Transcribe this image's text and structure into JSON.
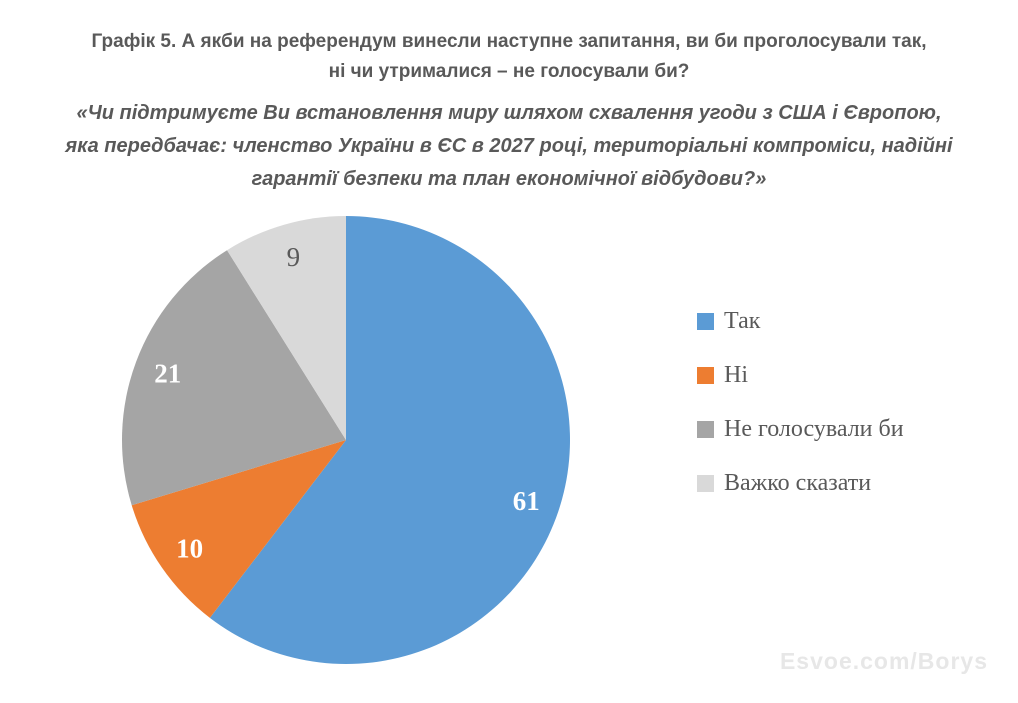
{
  "header": {
    "title_lines": [
      "Графік 5. А якби на референдум винесли наступне запитання, ви би проголосували так,",
      "ні чи утрималися – не голосували би?"
    ],
    "subtitle_lines": [
      "«Чи підтримуєте Ви встановлення миру шляхом схвалення угоди з США і Європою,",
      "яка передбачає: членство України в ЄС в 2027 році, територіальні компроміси, надійні",
      "гарантії безпеки та план економічної відбудови?»"
    ],
    "text_color": "#595959"
  },
  "chart_data": {
    "type": "pie",
    "title": "Графік 5. А якби на референдум винесли наступне запитання, ви би проголосували так, ні чи утрималися – не голосували би?",
    "categories": [
      "Так",
      "Ні",
      "Не голосували би",
      "Важко сказати"
    ],
    "values": [
      61,
      10,
      21,
      9
    ],
    "colors": [
      "#5b9bd5",
      "#ed7d31",
      "#a5a5a5",
      "#d9d9d9"
    ],
    "data_labels": [
      {
        "text": "61",
        "color": "#ffffff",
        "weight": "bold"
      },
      {
        "text": "10",
        "color": "#ffffff",
        "weight": "bold"
      },
      {
        "text": "21",
        "color": "#ffffff",
        "weight": "bold"
      },
      {
        "text": "9",
        "color": "#595959",
        "weight": "normal"
      }
    ],
    "start_angle_deg": 0,
    "direction": "clockwise",
    "legend_position": "right",
    "label_radius_fraction": 0.85
  },
  "watermark": {
    "text": "Esvoe.com/Borys",
    "color": "#e7e7e7"
  }
}
